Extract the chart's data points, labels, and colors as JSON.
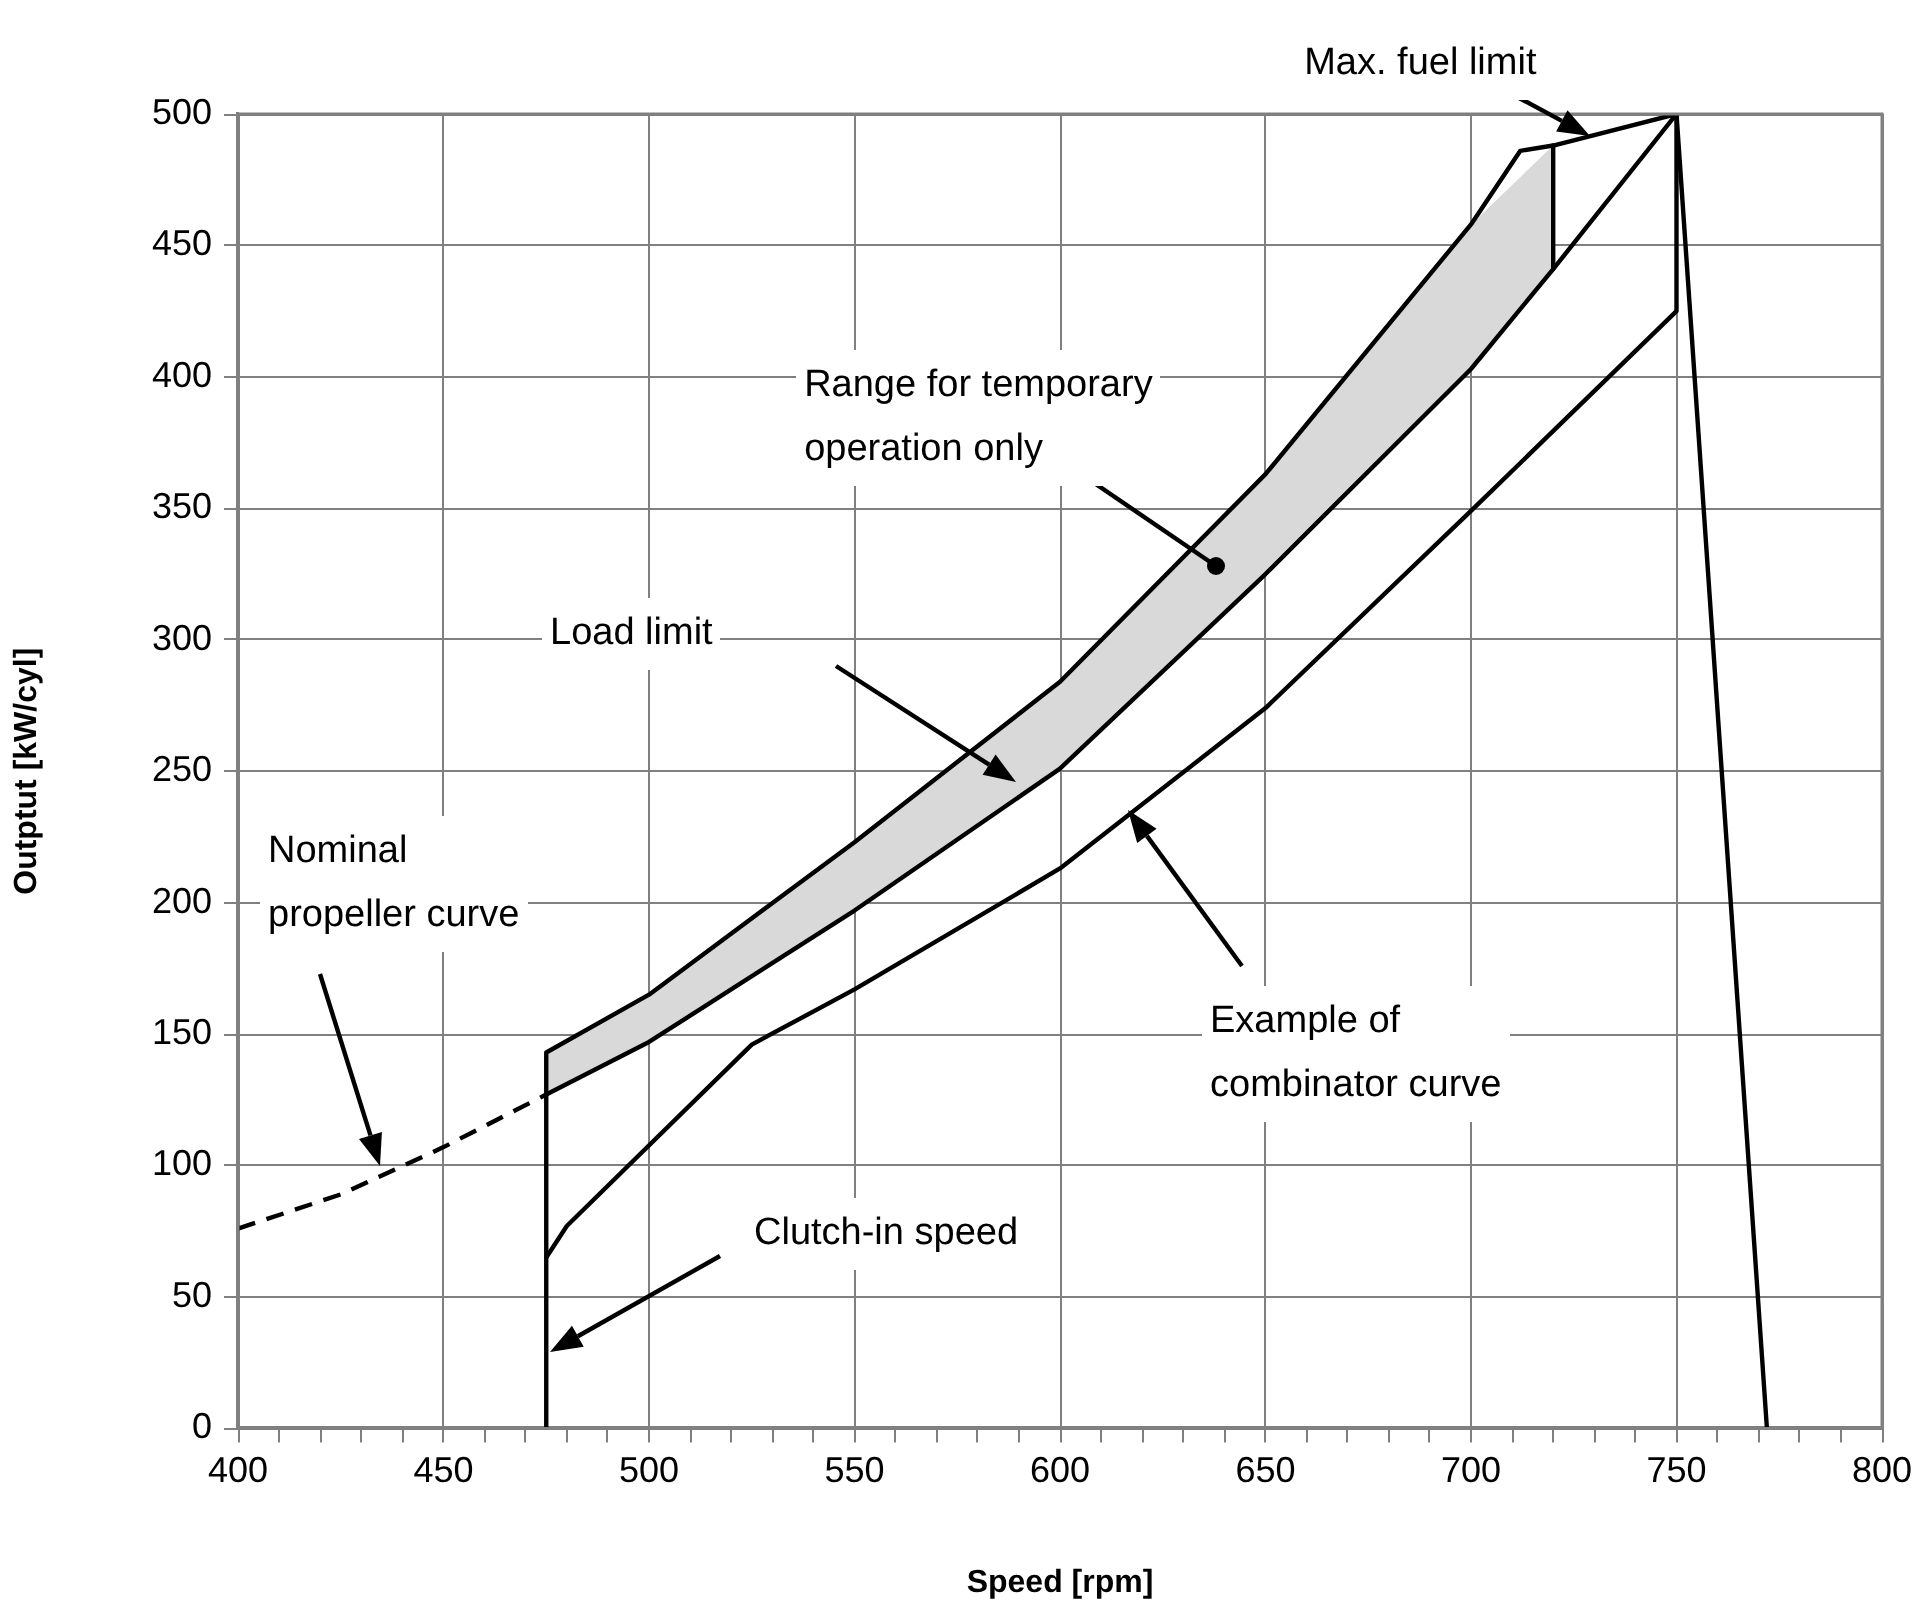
{
  "chart_data": {
    "type": "line",
    "xlabel": "Speed [rpm]",
    "ylabel": "Outptut [kW/cyl]",
    "xlim": [
      400,
      800
    ],
    "ylim": [
      0,
      500
    ],
    "xticks": [
      400,
      {
        "value": 410,
        "label": null
      },
      {
        "value": 420,
        "label": null
      },
      {
        "value": 430,
        "label": null
      },
      {
        "value": 440,
        "label": null
      },
      450,
      {
        "value": 460,
        "label": null
      },
      {
        "value": 470,
        "label": null
      },
      {
        "value": 480,
        "label": null
      },
      {
        "value": 490,
        "label": null
      },
      500,
      {
        "value": 510,
        "label": null
      },
      {
        "value": 520,
        "label": null
      },
      {
        "value": 530,
        "label": null
      },
      {
        "value": 540,
        "label": null
      },
      550,
      {
        "value": 560,
        "label": null
      },
      {
        "value": 570,
        "label": null
      },
      {
        "value": 580,
        "label": null
      },
      {
        "value": 590,
        "label": null
      },
      600,
      {
        "value": 610,
        "label": null
      },
      {
        "value": 620,
        "label": null
      },
      {
        "value": 630,
        "label": null
      },
      {
        "value": 640,
        "label": null
      },
      650,
      {
        "value": 660,
        "label": null
      },
      {
        "value": 670,
        "label": null
      },
      {
        "value": 680,
        "label": null
      },
      {
        "value": 690,
        "label": null
      },
      700,
      {
        "value": 710,
        "label": null
      },
      {
        "value": 720,
        "label": null
      },
      {
        "value": 730,
        "label": null
      },
      {
        "value": 740,
        "label": null
      },
      750,
      {
        "value": 760,
        "label": null
      },
      {
        "value": 770,
        "label": null
      },
      {
        "value": 780,
        "label": null
      },
      {
        "value": 790,
        "label": null
      },
      800
    ],
    "yticks": [
      0,
      50,
      100,
      150,
      200,
      250,
      300,
      350,
      400,
      450,
      500
    ],
    "grid": true,
    "marker": "none",
    "series": [
      {
        "color": "#000000",
        "x": [
          475,
          475,
          500,
          550,
          600,
          650,
          700,
          712,
          720,
          750,
          772
        ],
        "values": [
          0,
          143,
          165,
          223,
          284,
          363,
          458,
          486,
          488,
          500,
          0
        ]
      },
      {
        "color": "#000000",
        "x": [
          475,
          500,
          550,
          600,
          650,
          700,
          720,
          750
        ],
        "values": [
          127,
          147,
          197,
          251,
          325,
          403,
          441,
          500
        ],
        "lower": [
          127,
          147,
          197,
          251,
          325,
          403,
          441,
          null
        ],
        "upper": [
          143,
          165,
          223,
          284,
          363,
          458,
          488,
          null
        ]
      },
      {
        "color": "#000000",
        "x": [
          720,
          720
        ],
        "values": [
          488,
          441
        ]
      },
      {
        "color": "#000000",
        "x": [
          475,
          480,
          525,
          550,
          600,
          650,
          700,
          750,
          750
        ],
        "values": [
          65,
          77,
          146,
          167,
          213,
          274,
          349,
          425,
          500
        ]
      },
      {
        "color": "#000000",
        "x": [
          400,
          425,
          450,
          475
        ],
        "values": [
          76,
          89,
          107,
          127
        ],
        "line_style": "dashed"
      }
    ],
    "annotations": [
      {
        "text": "Max. fuel limit",
        "x": 729,
        "y": 492
      },
      {
        "text": "Range for temporary\noperation only",
        "x": 638,
        "y": 328
      },
      "Load limit",
      "Nominal\npropeller curve",
      "Example of\ncombinator curve",
      "Clutch-in speed"
    ]
  }
}
